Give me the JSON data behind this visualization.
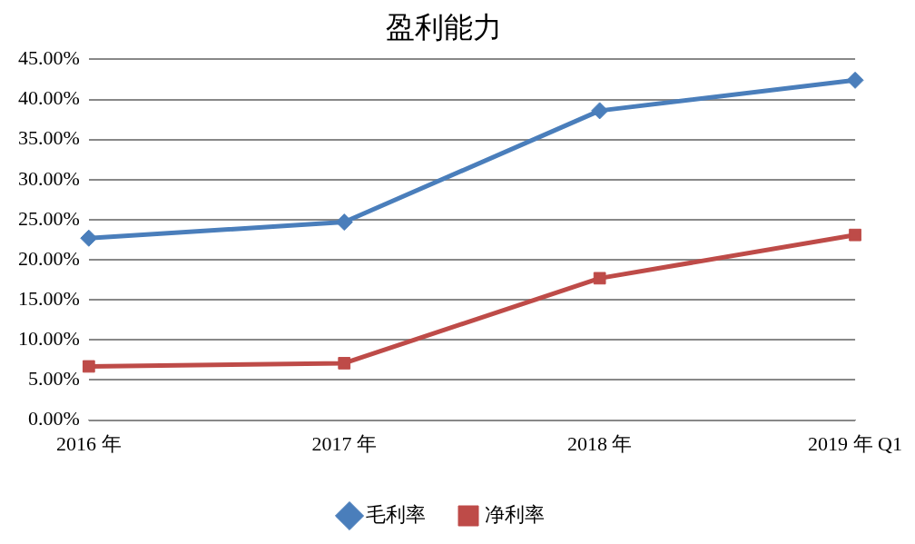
{
  "chart_data": {
    "type": "line",
    "title": "盈利能力",
    "categories": [
      "2016 年",
      "2017 年",
      "2018 年",
      "2019 年 Q1"
    ],
    "series": [
      {
        "name": "毛利率",
        "color": "#4a7ebb",
        "marker": "diamond",
        "values": [
          22.7,
          24.7,
          38.6,
          42.4
        ]
      },
      {
        "name": "净利率",
        "color": "#be4b48",
        "marker": "square",
        "values": [
          6.7,
          7.1,
          17.7,
          23.1
        ]
      }
    ],
    "ylim": [
      0,
      45
    ],
    "yticks": [
      {
        "value": 0,
        "label": "0.00%"
      },
      {
        "value": 5,
        "label": "5.00%"
      },
      {
        "value": 10,
        "label": "10.00%"
      },
      {
        "value": 15,
        "label": "15.00%"
      },
      {
        "value": 20,
        "label": "20.00%"
      },
      {
        "value": 25,
        "label": "25.00%"
      },
      {
        "value": 30,
        "label": "30.00%"
      },
      {
        "value": 35,
        "label": "35.00%"
      },
      {
        "value": 40,
        "label": "40.00%"
      },
      {
        "value": 45,
        "label": "45.00%"
      }
    ],
    "grid": "y",
    "legend": "bottom",
    "line_style": "solid"
  }
}
